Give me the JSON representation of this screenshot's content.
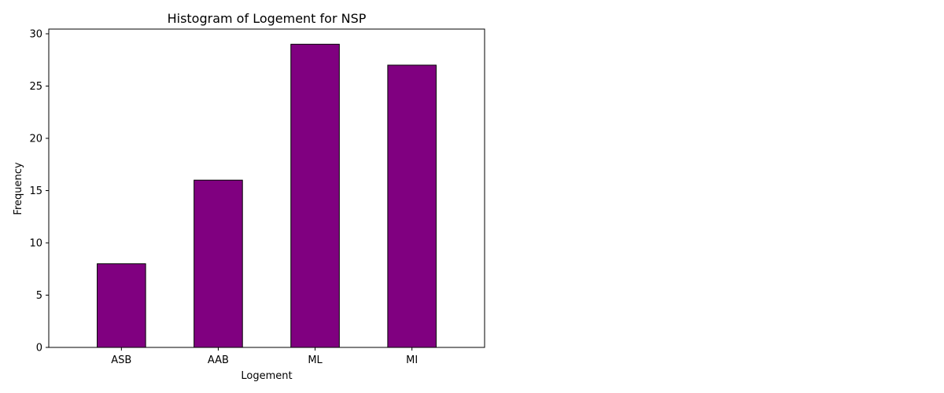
{
  "chart_data": {
    "type": "bar",
    "title": "Histogram of Logement for NSP",
    "xlabel": "Logement",
    "ylabel": "Frequency",
    "categories": [
      "ASB",
      "AAB",
      "ML",
      "MI"
    ],
    "values": [
      8,
      16,
      29,
      27
    ],
    "ylim": [
      0,
      30.45
    ],
    "yticks": [
      0,
      5,
      10,
      15,
      20,
      25,
      30
    ],
    "bar_color": "#800080",
    "edge_color": "#000000",
    "grid": false,
    "legend": "none"
  }
}
